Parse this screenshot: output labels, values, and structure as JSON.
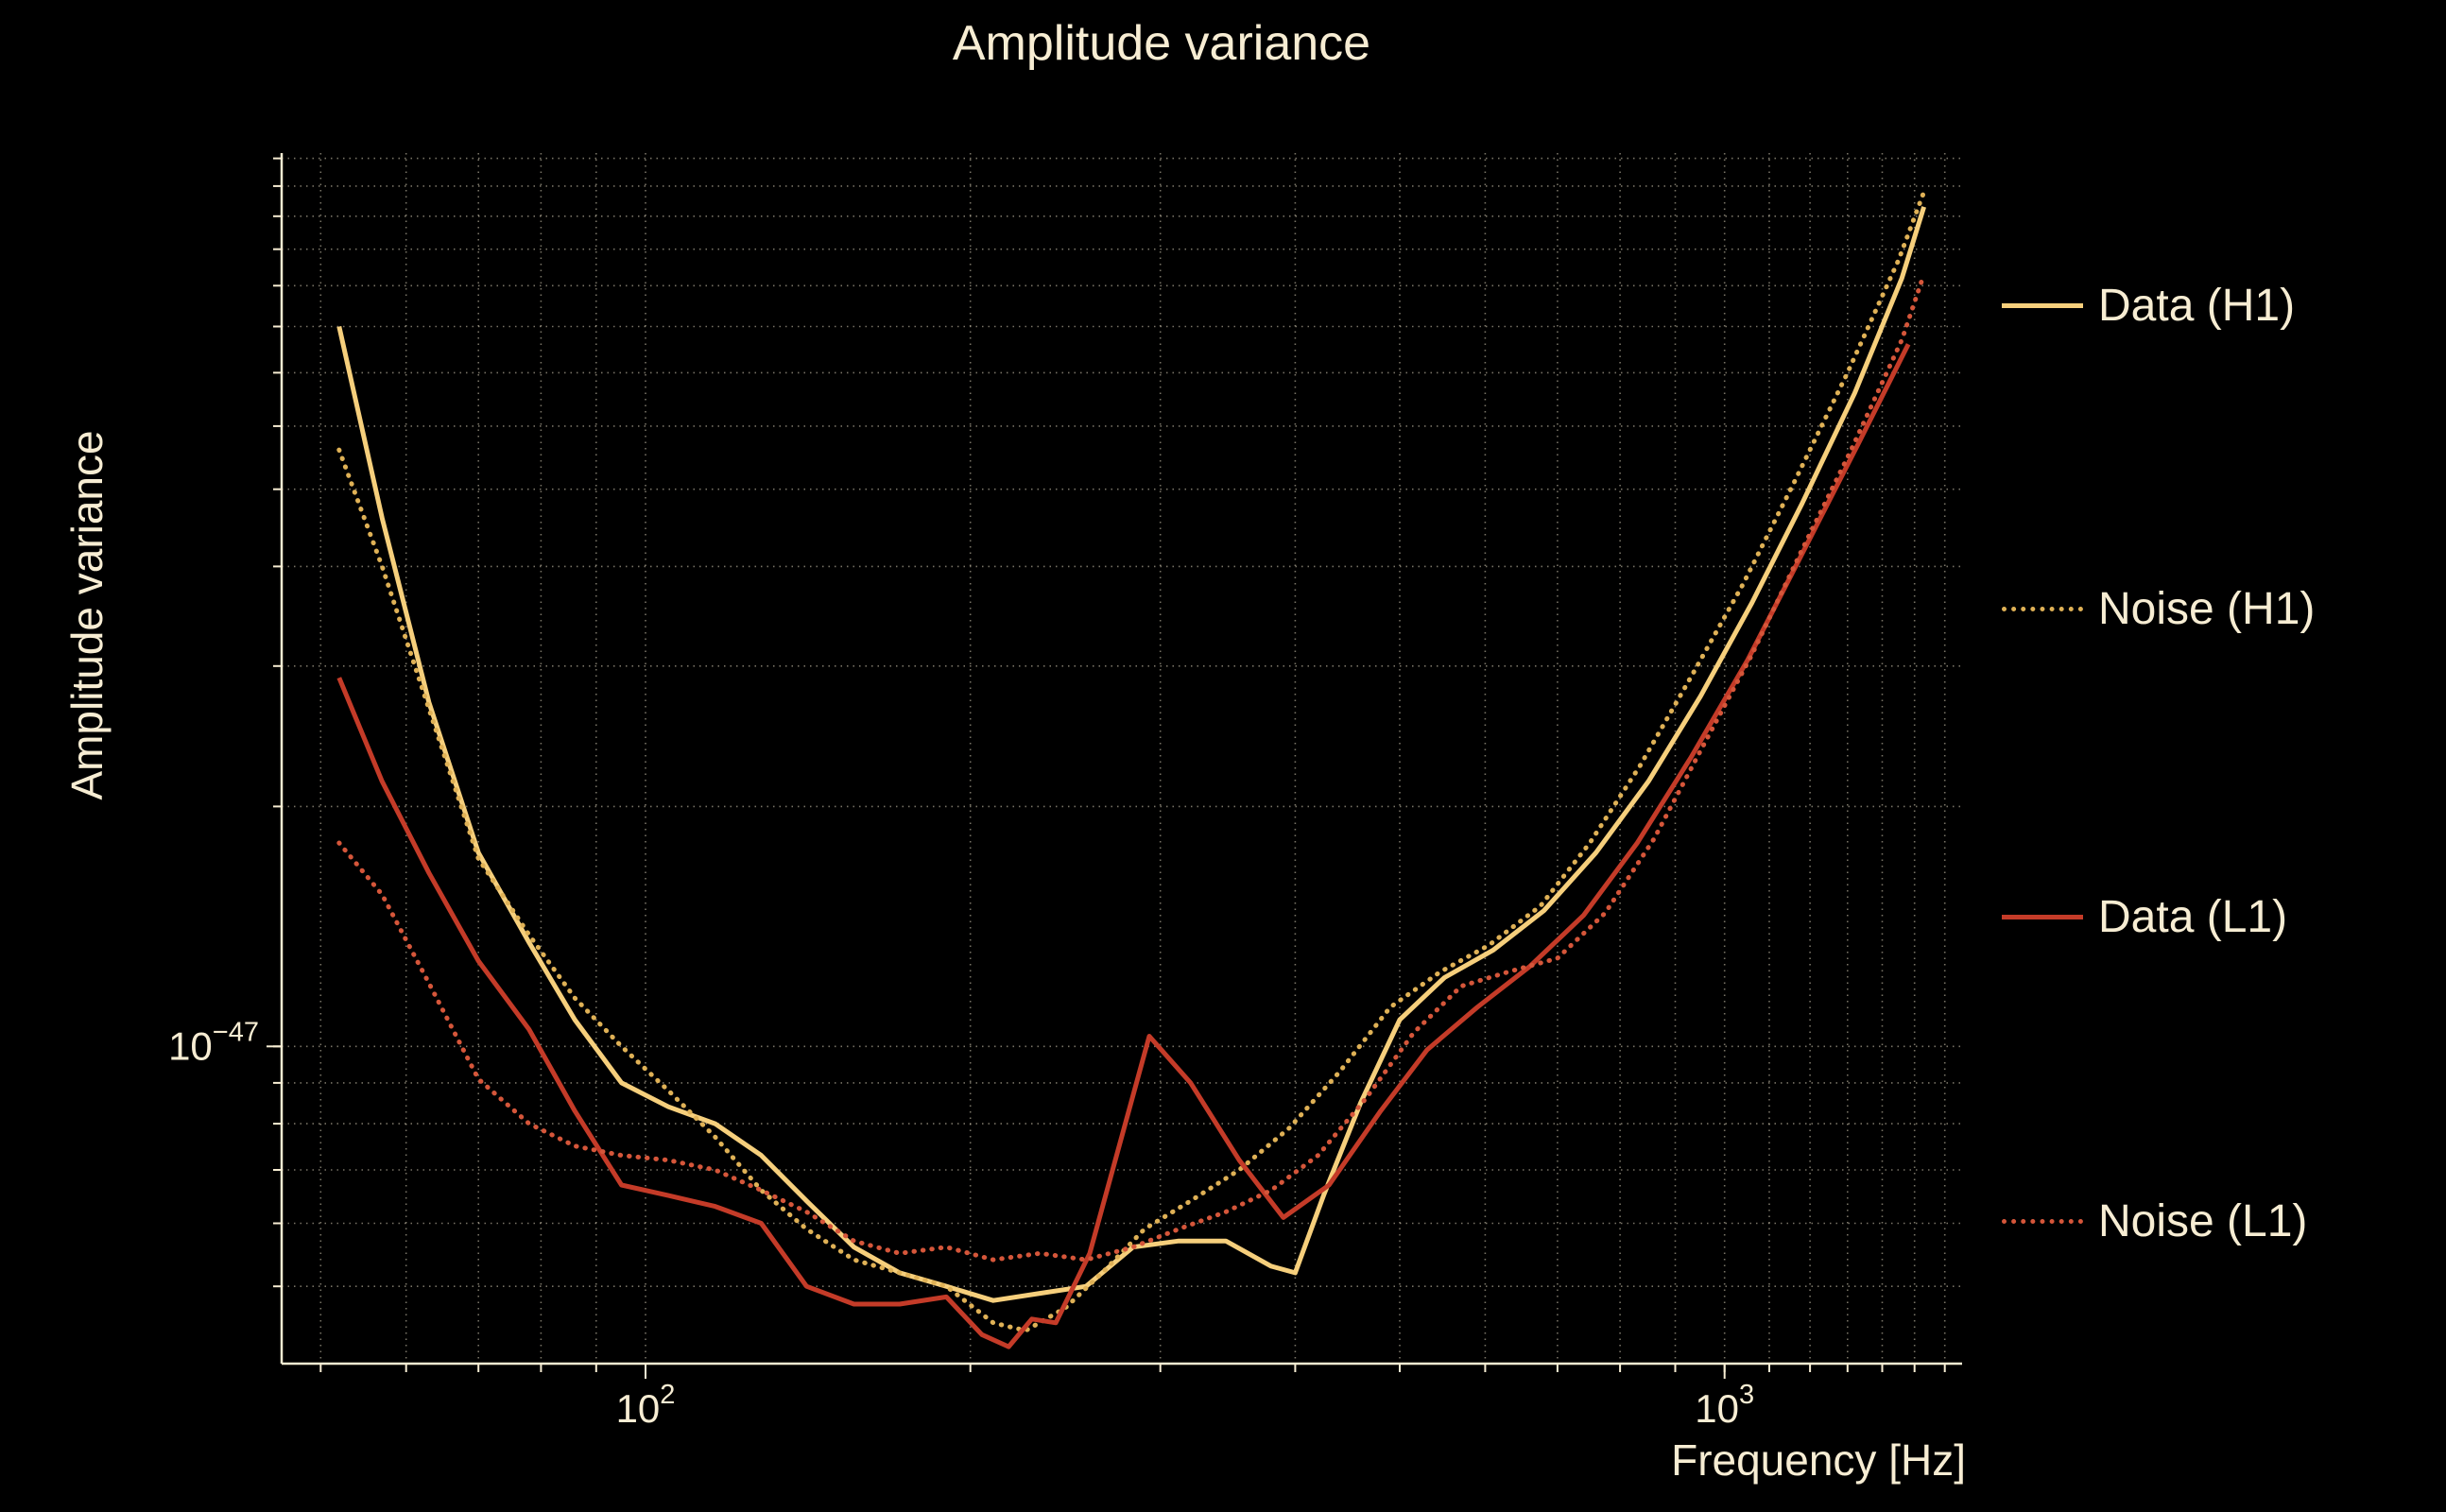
{
  "chart_data": {
    "type": "line",
    "title": "Amplitude variance",
    "xlabel": "Frequency [Hz]",
    "ylabel": "Amplitude variance",
    "x_scale": "log",
    "y_scale": "log",
    "grid": "both",
    "legend_position": "right-outside",
    "background_color": "#000000",
    "text_color": "#f7edd3",
    "xlim": [
      46,
      1660
    ],
    "ylim": [
      4e-48,
      1.32e-46
    ],
    "xticks": [
      {
        "value": 100,
        "base": "10",
        "exponent": "2"
      },
      {
        "value": 1000,
        "base": "10",
        "exponent": "3"
      }
    ],
    "yticks": [
      {
        "value": 1e-47,
        "base": "10",
        "exponent": "−47"
      }
    ],
    "x_gridlines": [
      50,
      60,
      70,
      80,
      90,
      100,
      200,
      300,
      400,
      500,
      600,
      700,
      800,
      900,
      1000,
      1100,
      1200,
      1300,
      1400,
      1500,
      1600
    ],
    "y_gridlines": [
      5e-48,
      6e-48,
      7e-48,
      8e-48,
      9e-48,
      1e-47,
      2e-47,
      3e-47,
      4e-47,
      5e-47,
      6e-47,
      7e-47,
      8e-47,
      9e-47,
      1e-46,
      1.1e-46,
      1.2e-46,
      1.3e-46
    ],
    "series": [
      {
        "id": "data-h1",
        "name": "Data (H1)",
        "color": "#f6cf7c",
        "linestyle": "solid",
        "x": [
          52,
          57,
          63,
          70,
          78,
          86,
          95,
          105,
          116,
          128,
          141,
          156,
          172,
          190,
          210,
          232,
          256,
          283,
          312,
          345,
          380,
          400,
          425,
          460,
          500,
          550,
          610,
          680,
          760,
          850,
          950,
          1060,
          1180,
          1320,
          1460,
          1530
        ],
        "y": [
          8e-47,
          4.6e-47,
          2.7e-47,
          1.75e-47,
          1.35e-47,
          1.08e-47,
          9e-48,
          8.4e-48,
          8e-48,
          7.3e-48,
          6.4e-48,
          5.6e-48,
          5.2e-48,
          5e-48,
          4.8e-48,
          4.9e-48,
          5e-48,
          5.6e-48,
          5.7e-48,
          5.7e-48,
          5.3e-48,
          5.2e-48,
          6.5e-48,
          8.5e-48,
          1.08e-47,
          1.22e-47,
          1.32e-47,
          1.48e-47,
          1.75e-47,
          2.15e-47,
          2.75e-47,
          3.6e-47,
          4.8e-47,
          6.6e-47,
          9.2e-47,
          1.13e-46
        ]
      },
      {
        "id": "noise-h1",
        "name": "Noise (H1)",
        "color": "#dfb156",
        "linestyle": "dotted",
        "x": [
          52,
          57,
          63,
          70,
          78,
          86,
          95,
          105,
          116,
          128,
          141,
          156,
          172,
          190,
          210,
          225,
          245,
          265,
          290,
          320,
          355,
          395,
          440,
          490,
          545,
          605,
          675,
          750,
          835,
          930,
          1040,
          1160,
          1300,
          1450,
          1530
        ],
        "y": [
          5.6e-47,
          4e-47,
          2.65e-47,
          1.72e-47,
          1.38e-47,
          1.15e-47,
          1e-47,
          8.8e-48,
          7.7e-48,
          6.6e-48,
          5.9e-48,
          5.4e-48,
          5.2e-48,
          5e-48,
          4.5e-48,
          4.4e-48,
          4.7e-48,
          5.2e-48,
          5.9e-48,
          6.4e-48,
          7e-48,
          7.9e-48,
          9.3e-48,
          1.12e-47,
          1.24e-47,
          1.34e-47,
          1.5e-47,
          1.8e-47,
          2.25e-47,
          2.9e-47,
          3.8e-47,
          5.1e-47,
          7e-47,
          9.7e-47,
          1.18e-46
        ]
      },
      {
        "id": "data-l1",
        "name": "Data (L1)",
        "color": "#c43b28",
        "linestyle": "solid",
        "x": [
          52,
          57,
          63,
          70,
          78,
          86,
          95,
          105,
          116,
          128,
          141,
          156,
          172,
          190,
          205,
          217,
          228,
          240,
          258,
          293,
          320,
          355,
          390,
          430,
          480,
          530,
          590,
          660,
          740,
          830,
          930,
          1050,
          1180,
          1330,
          1480
        ],
        "y": [
          2.9e-47,
          2.15e-47,
          1.65e-47,
          1.28e-47,
          1.05e-47,
          8.3e-48,
          6.7e-48,
          6.5e-48,
          6.3e-48,
          6e-48,
          5e-48,
          4.75e-48,
          4.75e-48,
          4.85e-48,
          4.35e-48,
          4.2e-48,
          4.55e-48,
          4.5e-48,
          5.5e-48,
          1.03e-47,
          9e-48,
          7.2e-48,
          6.1e-48,
          6.7e-48,
          8.3e-48,
          9.9e-48,
          1.12e-47,
          1.26e-47,
          1.46e-47,
          1.8e-47,
          2.3e-47,
          3.05e-47,
          4.15e-47,
          5.7e-47,
          7.6e-47
        ]
      },
      {
        "id": "noise-l1",
        "name": "Noise (L1)",
        "color": "#d5563a",
        "linestyle": "dotted",
        "x": [
          52,
          57,
          63,
          70,
          78,
          86,
          95,
          105,
          116,
          128,
          141,
          156,
          172,
          190,
          210,
          232,
          256,
          283,
          312,
          345,
          380,
          420,
          465,
          515,
          570,
          630,
          700,
          775,
          860,
          950,
          1060,
          1180,
          1310,
          1460,
          1530
        ],
        "y": [
          1.8e-47,
          1.55e-47,
          1.2e-47,
          9.1e-48,
          8e-48,
          7.5e-48,
          7.3e-48,
          7.2e-48,
          7e-48,
          6.6e-48,
          6.2e-48,
          5.7e-48,
          5.5e-48,
          5.6e-48,
          5.4e-48,
          5.5e-48,
          5.4e-48,
          5.6e-48,
          5.9e-48,
          6.2e-48,
          6.6e-48,
          7.3e-48,
          8.6e-48,
          1.04e-47,
          1.19e-47,
          1.24e-47,
          1.29e-47,
          1.47e-47,
          1.82e-47,
          2.35e-47,
          3.1e-47,
          4.2e-47,
          5.6e-47,
          7.7e-47,
          9.3e-47
        ]
      }
    ]
  }
}
